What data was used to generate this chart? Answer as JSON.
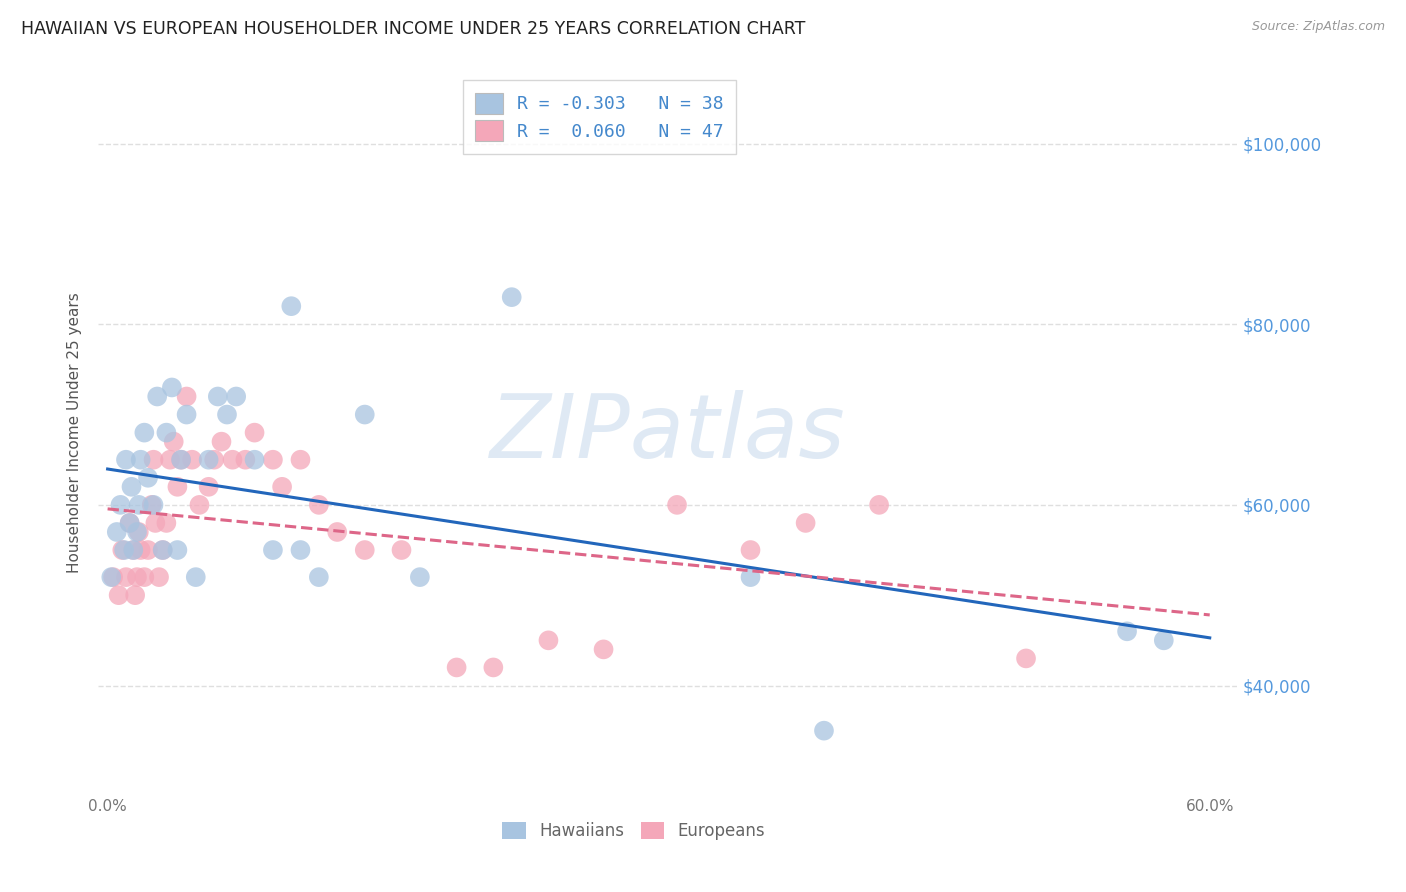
{
  "title": "HAWAIIAN VS EUROPEAN HOUSEHOLDER INCOME UNDER 25 YEARS CORRELATION CHART",
  "source": "Source: ZipAtlas.com",
  "ylabel": "Householder Income Under 25 years",
  "xlim": [
    -0.005,
    0.615
  ],
  "ylim": [
    28000,
    108000
  ],
  "xtick_positions": [
    0.0,
    0.1,
    0.2,
    0.3,
    0.4,
    0.5,
    0.6
  ],
  "xticklabels": [
    "0.0%",
    "",
    "",
    "",
    "",
    "",
    "60.0%"
  ],
  "yticks_right": [
    40000,
    60000,
    80000,
    100000
  ],
  "ytick_labels_right": [
    "$40,000",
    "$60,000",
    "$80,000",
    "$100,000"
  ],
  "hawaiian_color": "#a8c4e0",
  "european_color": "#f4a7b9",
  "hawaiian_line_color": "#2266bb",
  "european_line_color": "#dd6688",
  "grid_color": "#d8d8d8",
  "watermark_color": "#c5d8ec",
  "watermark_text": "ZIPatlas",
  "legend_text_color": "#4488cc",
  "legend_line1": "R = -0.303   N = 38",
  "legend_line2": "R =  0.060   N = 47",
  "bottom_legend_color": "#666666",
  "hawaiians_x": [
    0.002,
    0.005,
    0.007,
    0.009,
    0.01,
    0.012,
    0.013,
    0.014,
    0.016,
    0.017,
    0.018,
    0.02,
    0.022,
    0.025,
    0.027,
    0.03,
    0.032,
    0.035,
    0.038,
    0.04,
    0.043,
    0.048,
    0.055,
    0.06,
    0.065,
    0.07,
    0.08,
    0.09,
    0.1,
    0.105,
    0.115,
    0.14,
    0.17,
    0.22,
    0.35,
    0.39,
    0.555,
    0.575
  ],
  "hawaiians_y": [
    52000,
    57000,
    60000,
    55000,
    65000,
    58000,
    62000,
    55000,
    57000,
    60000,
    65000,
    68000,
    63000,
    60000,
    72000,
    55000,
    68000,
    73000,
    55000,
    65000,
    70000,
    52000,
    65000,
    72000,
    70000,
    72000,
    65000,
    55000,
    82000,
    55000,
    52000,
    70000,
    52000,
    83000,
    52000,
    35000,
    46000,
    45000
  ],
  "europeans_x": [
    0.003,
    0.006,
    0.008,
    0.01,
    0.012,
    0.014,
    0.015,
    0.016,
    0.017,
    0.018,
    0.02,
    0.022,
    0.024,
    0.025,
    0.026,
    0.028,
    0.03,
    0.032,
    0.034,
    0.036,
    0.038,
    0.04,
    0.043,
    0.046,
    0.05,
    0.055,
    0.058,
    0.062,
    0.068,
    0.075,
    0.08,
    0.09,
    0.095,
    0.105,
    0.115,
    0.125,
    0.14,
    0.16,
    0.19,
    0.21,
    0.24,
    0.27,
    0.31,
    0.35,
    0.38,
    0.42,
    0.5
  ],
  "europeans_y": [
    52000,
    50000,
    55000,
    52000,
    58000,
    55000,
    50000,
    52000,
    57000,
    55000,
    52000,
    55000,
    60000,
    65000,
    58000,
    52000,
    55000,
    58000,
    65000,
    67000,
    62000,
    65000,
    72000,
    65000,
    60000,
    62000,
    65000,
    67000,
    65000,
    65000,
    68000,
    65000,
    62000,
    65000,
    60000,
    57000,
    55000,
    55000,
    42000,
    42000,
    45000,
    44000,
    60000,
    55000,
    58000,
    60000,
    43000
  ]
}
